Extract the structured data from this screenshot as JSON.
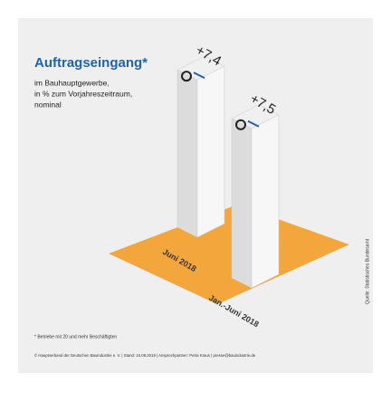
{
  "chart_data": {
    "type": "iso-bar",
    "title": "Auftragseingang*",
    "subtitle_lines": [
      "im Bauhauptgewerbe,",
      "in % zum Vorjahreszeitraum,",
      "nominal"
    ],
    "categories": [
      "Juni 2018",
      "Jan.-Juni 2018"
    ],
    "values": [
      7.4,
      7.5
    ],
    "value_labels": [
      "+7,4",
      "+7,5"
    ],
    "color": "#f0f0f0",
    "floor_color": "#f2a63c",
    "footnote": "* Betriebe mit 20 und mehr Beschäftigten",
    "source": "Quelle: Statistisches Bundesamt",
    "credit": "© Hauptverband der Deutschen Bauindustrie e. V. | Stand: 24.08.2018 | Ansprechpartner: Petra Kraus | presse@bauindustrie.de"
  }
}
